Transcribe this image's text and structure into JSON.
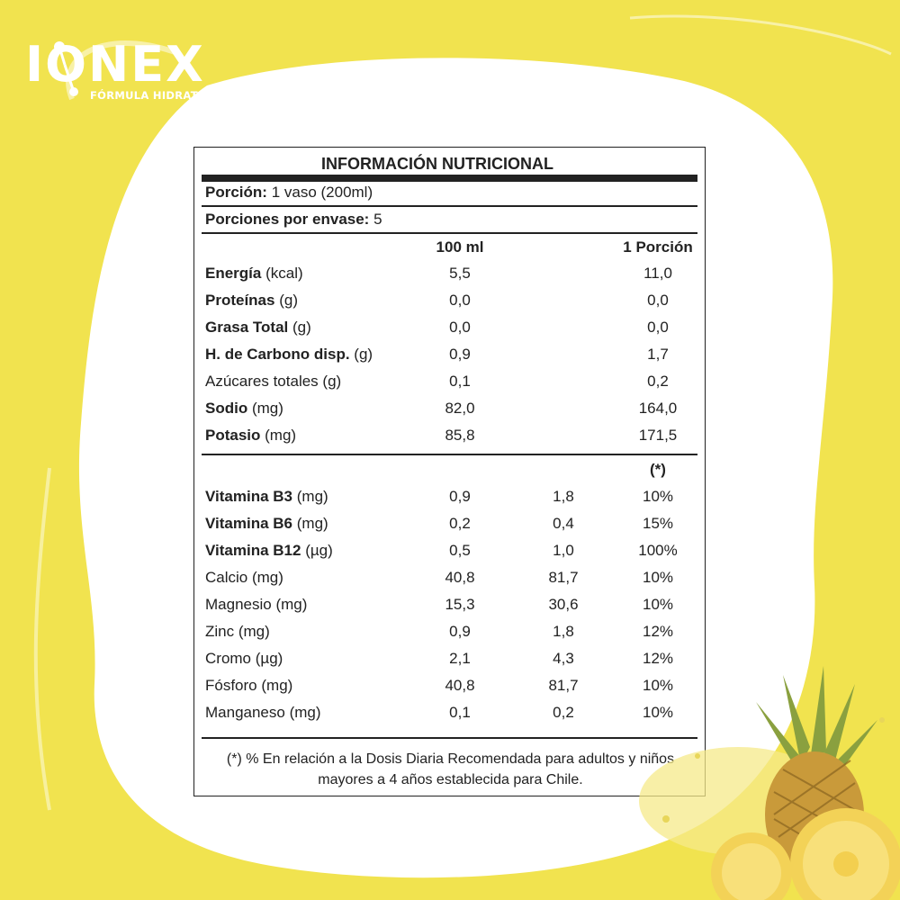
{
  "brand": {
    "logo_text": "IONEX",
    "tagline": "FÓRMULA HIDRATANTE"
  },
  "colors": {
    "background": "#f1e34f",
    "panel": "#ffffff",
    "ink": "#222222"
  },
  "table": {
    "title": "INFORMACIÓN NUTRICIONAL",
    "portion_label": "Porción:",
    "portion_value": "1 vaso (200ml)",
    "servings_label": "Porciones por envase:",
    "servings_value": "5",
    "col_100ml": "100 ml",
    "col_portion": "1 Porción",
    "macros": [
      {
        "name": "Energía",
        "unit": "(kcal)",
        "bold": true,
        "v100": "5,5",
        "vportion": "11,0"
      },
      {
        "name": "Proteínas",
        "unit": "(g)",
        "bold": true,
        "v100": "0,0",
        "vportion": "0,0"
      },
      {
        "name": "Grasa Total",
        "unit": "(g)",
        "bold": true,
        "v100": "0,0",
        "vportion": "0,0"
      },
      {
        "name": "H. de Carbono disp.",
        "unit": "(g)",
        "bold": true,
        "v100": "0,9",
        "vportion": "1,7"
      },
      {
        "name": "Azúcares totales",
        "unit": "(g)",
        "bold": false,
        "v100": "0,1",
        "vportion": "0,2"
      },
      {
        "name": "Sodio",
        "unit": "(mg)",
        "bold": true,
        "v100": "82,0",
        "vportion": "164,0"
      },
      {
        "name": "Potasio",
        "unit": "(mg)",
        "bold": true,
        "v100": "85,8",
        "vportion": "171,5"
      }
    ],
    "daily_marker": "(*)",
    "micros": [
      {
        "name": "Vitamina B3",
        "unit": "(mg)",
        "bold": true,
        "v100": "0,9",
        "vportion": "1,8",
        "pct": "10%"
      },
      {
        "name": "Vitamina B6",
        "unit": "(mg)",
        "bold": true,
        "v100": "0,2",
        "vportion": "0,4",
        "pct": "15%"
      },
      {
        "name": "Vitamina B12",
        "unit": "(µg)",
        "bold": true,
        "v100": "0,5",
        "vportion": "1,0",
        "pct": "100%"
      },
      {
        "name": "Calcio",
        "unit": "(mg)",
        "bold": false,
        "v100": "40,8",
        "vportion": "81,7",
        "pct": "10%"
      },
      {
        "name": "Magnesio",
        "unit": "(mg)",
        "bold": false,
        "v100": "15,3",
        "vportion": "30,6",
        "pct": "10%"
      },
      {
        "name": "Zinc",
        "unit": "(mg)",
        "bold": false,
        "v100": "0,9",
        "vportion": "1,8",
        "pct": "12%"
      },
      {
        "name": "Cromo",
        "unit": "(µg)",
        "bold": false,
        "v100": "2,1",
        "vportion": "4,3",
        "pct": "12%"
      },
      {
        "name": "Fósforo",
        "unit": "(mg)",
        "bold": false,
        "v100": "40,8",
        "vportion": "81,7",
        "pct": "10%"
      },
      {
        "name": "Manganeso",
        "unit": "(mg)",
        "bold": false,
        "v100": "0,1",
        "vportion": "0,2",
        "pct": "10%"
      }
    ],
    "footnote_line1": "(*)  % En relación a la Dosis Diaria Recomendada para adultos y niños",
    "footnote_line2": "mayores a 4 años establecida para Chile."
  },
  "decoration": {
    "image_icon": "pineapple-image"
  }
}
